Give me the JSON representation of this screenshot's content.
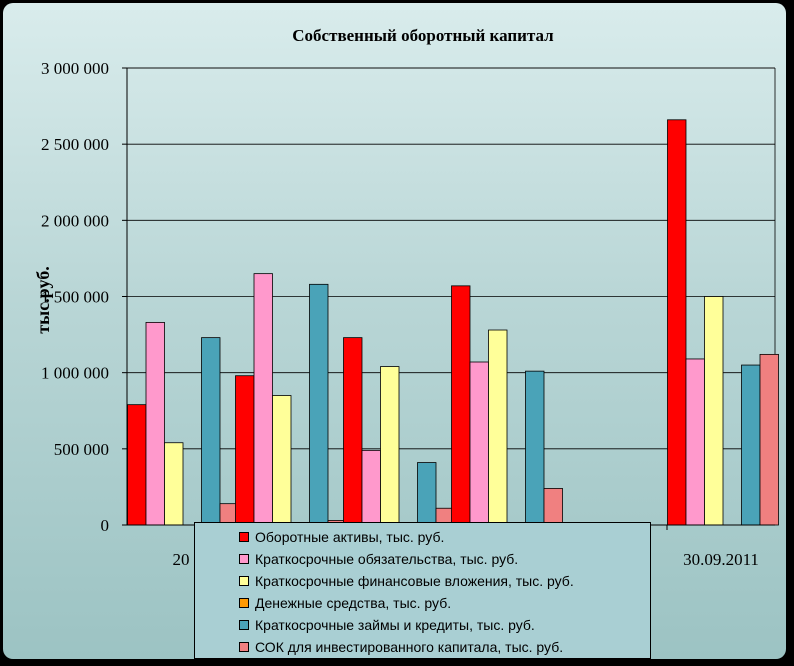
{
  "chart_data": {
    "type": "bar",
    "title": "Собственный оборотный капитал",
    "ylabel": "тыс.руб.",
    "ylim": [
      0,
      3000000
    ],
    "ytick_labels": [
      "0",
      "500 000",
      "1 000 000",
      "1 500 000",
      "2 000 000",
      "2 500 000",
      "3 000 000"
    ],
    "categories": [
      "20",
      "",
      "",
      "",
      "",
      "30.09.2011"
    ],
    "legend_position": "bottom-center",
    "grid": true,
    "series": [
      {
        "name": "Оборотные активы, тыс. руб.",
        "color": "#ff0000",
        "values": [
          790000,
          980000,
          1230000,
          1570000,
          0,
          2660000
        ]
      },
      {
        "name": "Краткосрочные обязательства, тыс. руб.",
        "color": "#ff99cc",
        "values": [
          1330000,
          1650000,
          490000,
          1070000,
          0,
          1090000
        ]
      },
      {
        "name": "Краткосрочные финансовые вложения, тыс. руб.",
        "color": "#ffff99",
        "values": [
          540000,
          850000,
          1040000,
          1280000,
          0,
          1500000
        ]
      },
      {
        "name": "Денежные средства, тыс. руб.",
        "color": "#ff9900",
        "values": [
          0,
          0,
          0,
          0,
          0,
          0
        ]
      },
      {
        "name": "Краткосрочные займы и кредиты, тыс. руб.",
        "color": "#4aa3b8",
        "values": [
          1230000,
          1580000,
          410000,
          1010000,
          0,
          1050000
        ]
      },
      {
        "name": "СОК для инвестированного капитала, тыс. руб.",
        "color": "#f08080",
        "values": [
          140000,
          30000,
          110000,
          240000,
          0,
          1120000
        ]
      }
    ]
  }
}
